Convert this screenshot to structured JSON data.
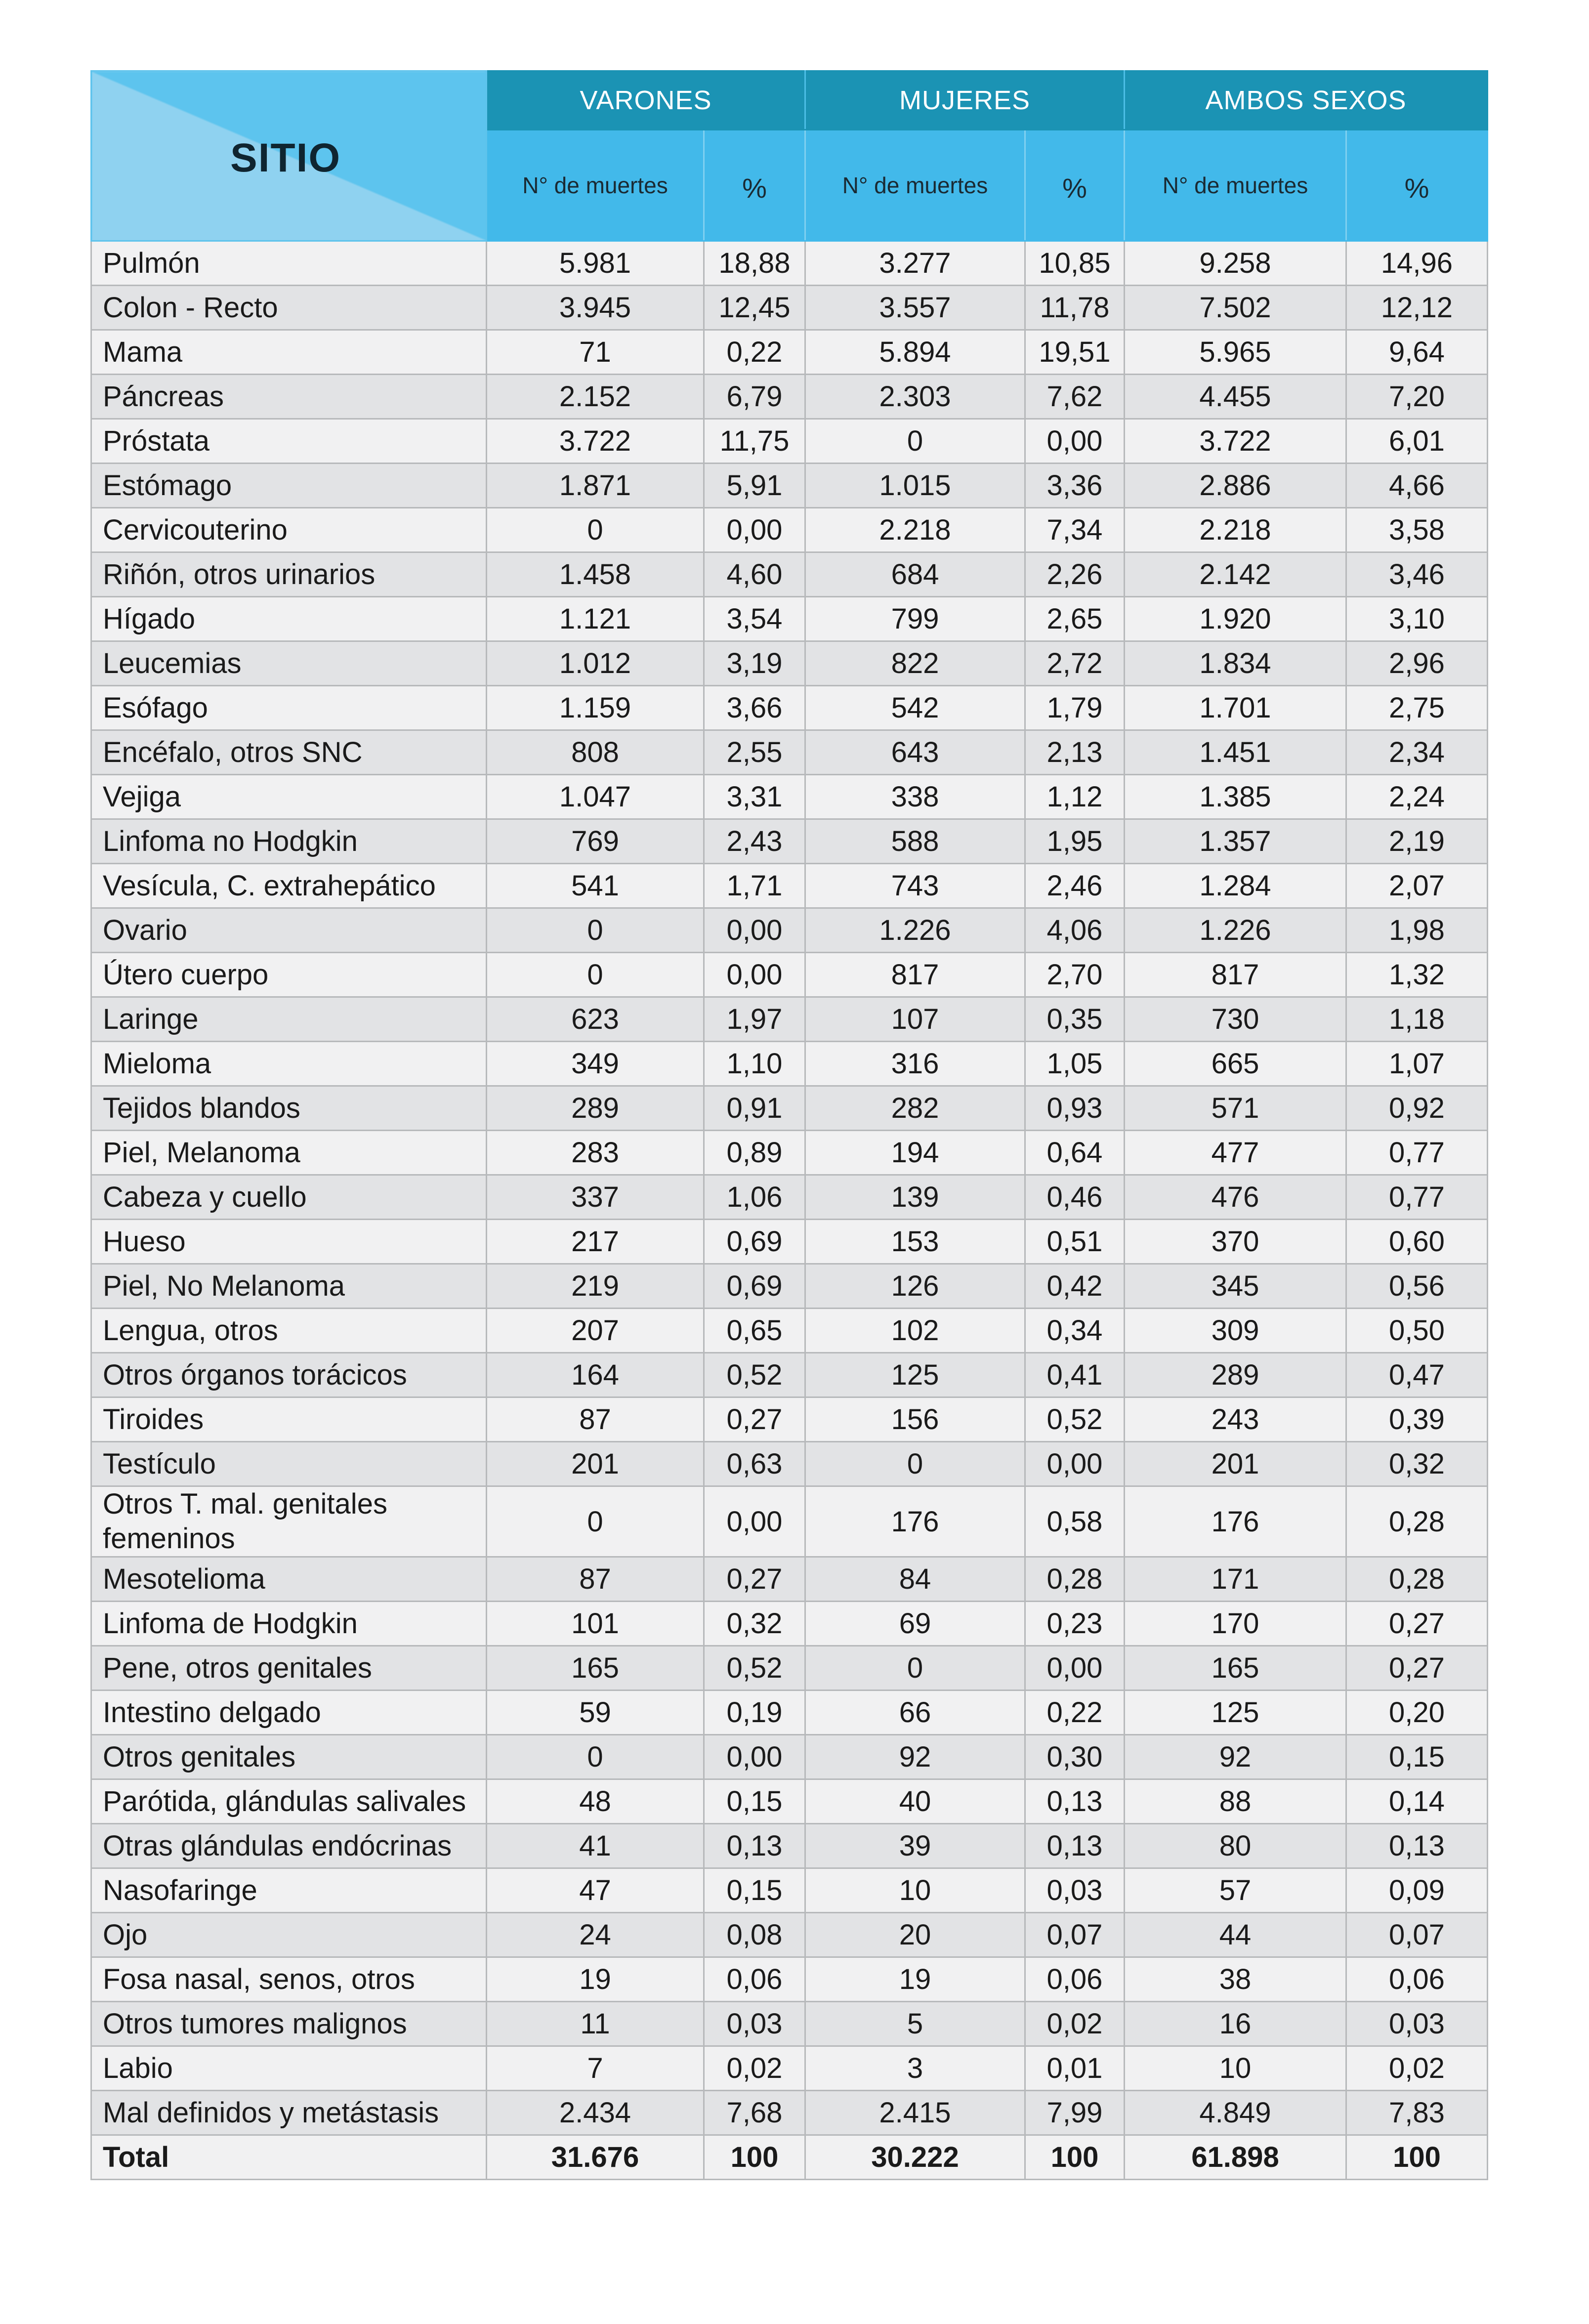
{
  "table": {
    "site_header": "SITIO",
    "groups": [
      "VARONES",
      "MUJERES",
      "AMBOS SEXOS"
    ],
    "sub_headers": {
      "deaths": "N° de muertes",
      "pct": "%"
    },
    "rows": [
      [
        "Pulmón",
        "5.981",
        "18,88",
        "3.277",
        "10,85",
        "9.258",
        "14,96"
      ],
      [
        "Colon - Recto",
        "3.945",
        "12,45",
        "3.557",
        "11,78",
        "7.502",
        "12,12"
      ],
      [
        "Mama",
        "71",
        "0,22",
        "5.894",
        "19,51",
        "5.965",
        "9,64"
      ],
      [
        "Páncreas",
        "2.152",
        "6,79",
        "2.303",
        "7,62",
        "4.455",
        "7,20"
      ],
      [
        "Próstata",
        "3.722",
        "11,75",
        "0",
        "0,00",
        "3.722",
        "6,01"
      ],
      [
        "Estómago",
        "1.871",
        "5,91",
        "1.015",
        "3,36",
        "2.886",
        "4,66"
      ],
      [
        "Cervicouterino",
        "0",
        "0,00",
        "2.218",
        "7,34",
        "2.218",
        "3,58"
      ],
      [
        "Riñón, otros urinarios",
        "1.458",
        "4,60",
        "684",
        "2,26",
        "2.142",
        "3,46"
      ],
      [
        "Hígado",
        "1.121",
        "3,54",
        "799",
        "2,65",
        "1.920",
        "3,10"
      ],
      [
        "Leucemias",
        "1.012",
        "3,19",
        "822",
        "2,72",
        "1.834",
        "2,96"
      ],
      [
        "Esófago",
        "1.159",
        "3,66",
        "542",
        "1,79",
        "1.701",
        "2,75"
      ],
      [
        "Encéfalo, otros SNC",
        "808",
        "2,55",
        "643",
        "2,13",
        "1.451",
        "2,34"
      ],
      [
        "Vejiga",
        "1.047",
        "3,31",
        "338",
        "1,12",
        "1.385",
        "2,24"
      ],
      [
        "Linfoma no Hodgkin",
        "769",
        "2,43",
        "588",
        "1,95",
        "1.357",
        "2,19"
      ],
      [
        "Vesícula, C. extrahepático",
        "541",
        "1,71",
        "743",
        "2,46",
        "1.284",
        "2,07"
      ],
      [
        "Ovario",
        "0",
        "0,00",
        "1.226",
        "4,06",
        "1.226",
        "1,98"
      ],
      [
        "Útero cuerpo",
        "0",
        "0,00",
        "817",
        "2,70",
        "817",
        "1,32"
      ],
      [
        "Laringe",
        "623",
        "1,97",
        "107",
        "0,35",
        "730",
        "1,18"
      ],
      [
        "Mieloma",
        "349",
        "1,10",
        "316",
        "1,05",
        "665",
        "1,07"
      ],
      [
        "Tejidos blandos",
        "289",
        "0,91",
        "282",
        "0,93",
        "571",
        "0,92"
      ],
      [
        "Piel, Melanoma",
        "283",
        "0,89",
        "194",
        "0,64",
        "477",
        "0,77"
      ],
      [
        "Cabeza y cuello",
        "337",
        "1,06",
        "139",
        "0,46",
        "476",
        "0,77"
      ],
      [
        "Hueso",
        "217",
        "0,69",
        "153",
        "0,51",
        "370",
        "0,60"
      ],
      [
        "Piel, No Melanoma",
        "219",
        "0,69",
        "126",
        "0,42",
        "345",
        "0,56"
      ],
      [
        "Lengua, otros",
        "207",
        "0,65",
        "102",
        "0,34",
        "309",
        "0,50"
      ],
      [
        "Otros órganos torácicos",
        "164",
        "0,52",
        "125",
        "0,41",
        "289",
        "0,47"
      ],
      [
        "Tiroides",
        "87",
        "0,27",
        "156",
        "0,52",
        "243",
        "0,39"
      ],
      [
        "Testículo",
        "201",
        "0,63",
        "0",
        "0,00",
        "201",
        "0,32"
      ],
      [
        "Otros T. mal. genitales femeninos",
        "0",
        "0,00",
        "176",
        "0,58",
        "176",
        "0,28"
      ],
      [
        "Mesotelioma",
        "87",
        "0,27",
        "84",
        "0,28",
        "171",
        "0,28"
      ],
      [
        "Linfoma de Hodgkin",
        "101",
        "0,32",
        "69",
        "0,23",
        "170",
        "0,27"
      ],
      [
        "Pene, otros genitales",
        "165",
        "0,52",
        "0",
        "0,00",
        "165",
        "0,27"
      ],
      [
        "Intestino delgado",
        "59",
        "0,19",
        "66",
        "0,22",
        "125",
        "0,20"
      ],
      [
        "Otros genitales",
        "0",
        "0,00",
        "92",
        "0,30",
        "92",
        "0,15"
      ],
      [
        "Parótida, glándulas salivales",
        "48",
        "0,15",
        "40",
        "0,13",
        "88",
        "0,14"
      ],
      [
        "Otras glándulas endócrinas",
        "41",
        "0,13",
        "39",
        "0,13",
        "80",
        "0,13"
      ],
      [
        "Nasofaringe",
        "47",
        "0,15",
        "10",
        "0,03",
        "57",
        "0,09"
      ],
      [
        "Ojo",
        "24",
        "0,08",
        "20",
        "0,07",
        "44",
        "0,07"
      ],
      [
        "Fosa nasal, senos, otros",
        "19",
        "0,06",
        "19",
        "0,06",
        "38",
        "0,06"
      ],
      [
        "Otros tumores malignos",
        "11",
        "0,03",
        "5",
        "0,02",
        "16",
        "0,03"
      ],
      [
        "Labio",
        "7",
        "0,02",
        "3",
        "0,01",
        "10",
        "0,02"
      ],
      [
        "Mal definidos y metástasis",
        "2.434",
        "7,68",
        "2.415",
        "7,99",
        "4.849",
        "7,83"
      ],
      [
        "Total",
        "31.676",
        "100",
        "30.222",
        "100",
        "61.898",
        "100"
      ]
    ]
  }
}
